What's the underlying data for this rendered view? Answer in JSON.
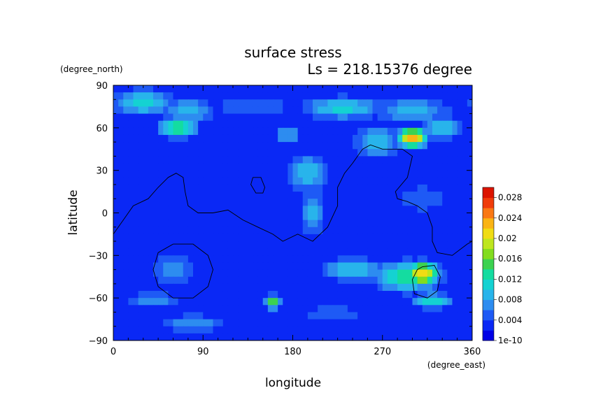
{
  "chart_data": {
    "type": "heatmap",
    "title": "surface stress",
    "subtitle": "Ls = 218.15376 degree",
    "xlabel": "longitude",
    "ylabel": "latitude",
    "xunit": "(degree_east)",
    "yunit": "(degree_north)",
    "xlim": [
      0,
      360
    ],
    "ylim": [
      -90,
      90
    ],
    "xticks": [
      0,
      90,
      180,
      270,
      360
    ],
    "yticks": [
      90,
      60,
      30,
      0,
      -30,
      -60,
      -90
    ],
    "colorbar": {
      "ticks": [
        "1e-10",
        "0.004",
        "0.008",
        "0.012",
        "0.016",
        "0.02",
        "0.024",
        "0.028"
      ],
      "tick_values": [
        0,
        0.004,
        0.008,
        0.012,
        0.016,
        0.02,
        0.024,
        0.028
      ],
      "range": [
        0,
        0.03
      ],
      "colors": [
        "#0000e6",
        "#0a28f5",
        "#1e5af5",
        "#2d8cf0",
        "#28b4eb",
        "#14d2d2",
        "#14dca0",
        "#3cd250",
        "#82dc1e",
        "#bee61e",
        "#f0dc14",
        "#fab414",
        "#fa7814",
        "#f03c0a",
        "#dc1400"
      ]
    },
    "grid": false,
    "background_value": 0.003,
    "features": [
      {
        "lon": 30,
        "lat": 78,
        "sx": 25,
        "sy": 7,
        "v": 0.011
      },
      {
        "lon": 75,
        "lat": 72,
        "sx": 20,
        "sy": 8,
        "v": 0.009
      },
      {
        "lon": 65,
        "lat": 60,
        "sx": 14,
        "sy": 5,
        "v": 0.015
      },
      {
        "lon": 140,
        "lat": 75,
        "sx": 35,
        "sy": 6,
        "v": 0.006
      },
      {
        "lon": 230,
        "lat": 74,
        "sx": 30,
        "sy": 6,
        "v": 0.011
      },
      {
        "lon": 300,
        "lat": 72,
        "sx": 30,
        "sy": 7,
        "v": 0.009
      },
      {
        "lon": 175,
        "lat": 55,
        "sx": 10,
        "sy": 6,
        "v": 0.009
      },
      {
        "lon": 265,
        "lat": 50,
        "sx": 18,
        "sy": 9,
        "v": 0.01
      },
      {
        "lon": 300,
        "lat": 53,
        "sx": 10,
        "sy": 5,
        "v": 0.024
      },
      {
        "lon": 330,
        "lat": 60,
        "sx": 14,
        "sy": 6,
        "v": 0.011
      },
      {
        "lon": 195,
        "lat": 28,
        "sx": 16,
        "sy": 10,
        "v": 0.01
      },
      {
        "lon": 200,
        "lat": 0,
        "sx": 9,
        "sy": 14,
        "v": 0.009
      },
      {
        "lon": 310,
        "lat": 10,
        "sx": 30,
        "sy": 12,
        "v": 0.005
      },
      {
        "lon": 60,
        "lat": -40,
        "sx": 20,
        "sy": 10,
        "v": 0.007
      },
      {
        "lon": 40,
        "lat": -62,
        "sx": 25,
        "sy": 5,
        "v": 0.007
      },
      {
        "lon": 80,
        "lat": -78,
        "sx": 25,
        "sy": 5,
        "v": 0.008
      },
      {
        "lon": 160,
        "lat": -63,
        "sx": 6,
        "sy": 4,
        "v": 0.016
      },
      {
        "lon": 240,
        "lat": -40,
        "sx": 25,
        "sy": 6,
        "v": 0.01
      },
      {
        "lon": 295,
        "lat": -45,
        "sx": 25,
        "sy": 8,
        "v": 0.014
      },
      {
        "lon": 310,
        "lat": -43,
        "sx": 12,
        "sy": 6,
        "v": 0.022
      },
      {
        "lon": 320,
        "lat": -62,
        "sx": 15,
        "sy": 4,
        "v": 0.012
      },
      {
        "lon": 220,
        "lat": -72,
        "sx": 30,
        "sy": 6,
        "v": 0.006
      }
    ],
    "contours": [
      {
        "points": [
          [
            0,
            -15
          ],
          [
            10,
            -5
          ],
          [
            20,
            5
          ],
          [
            35,
            10
          ],
          [
            45,
            18
          ],
          [
            55,
            25
          ],
          [
            63,
            28
          ],
          [
            70,
            25
          ],
          [
            72,
            15
          ],
          [
            75,
            5
          ],
          [
            85,
            0
          ],
          [
            100,
            0
          ],
          [
            115,
            2
          ],
          [
            130,
            -5
          ],
          [
            145,
            -10
          ],
          [
            160,
            -15
          ],
          [
            170,
            -20
          ],
          [
            185,
            -15
          ],
          [
            200,
            -20
          ],
          [
            215,
            -10
          ],
          [
            225,
            5
          ],
          [
            225,
            18
          ],
          [
            232,
            28
          ],
          [
            240,
            35
          ],
          [
            250,
            45
          ],
          [
            258,
            48
          ],
          [
            270,
            45
          ],
          [
            290,
            45
          ],
          [
            300,
            40
          ],
          [
            295,
            25
          ],
          [
            283,
            15
          ],
          [
            285,
            10
          ],
          [
            295,
            8
          ],
          [
            305,
            5
          ],
          [
            315,
            0
          ],
          [
            320,
            -10
          ],
          [
            320,
            -20
          ],
          [
            325,
            -28
          ],
          [
            340,
            -30
          ],
          [
            355,
            -22
          ],
          [
            360,
            -20
          ]
        ]
      },
      {
        "points": [
          [
            140,
            25
          ],
          [
            148,
            25
          ],
          [
            152,
            18
          ],
          [
            150,
            14
          ],
          [
            143,
            14
          ],
          [
            138,
            20
          ],
          [
            140,
            25
          ]
        ]
      },
      {
        "points": [
          [
            60,
            -22
          ],
          [
            80,
            -22
          ],
          [
            95,
            -30
          ],
          [
            100,
            -40
          ],
          [
            95,
            -52
          ],
          [
            80,
            -60
          ],
          [
            60,
            -60
          ],
          [
            45,
            -52
          ],
          [
            40,
            -40
          ],
          [
            45,
            -28
          ],
          [
            60,
            -22
          ]
        ]
      },
      {
        "points": [
          [
            310,
            -38
          ],
          [
            322,
            -37
          ],
          [
            328,
            -45
          ],
          [
            325,
            -55
          ],
          [
            315,
            -60
          ],
          [
            302,
            -57
          ],
          [
            300,
            -47
          ],
          [
            305,
            -40
          ],
          [
            310,
            -38
          ]
        ]
      }
    ]
  }
}
